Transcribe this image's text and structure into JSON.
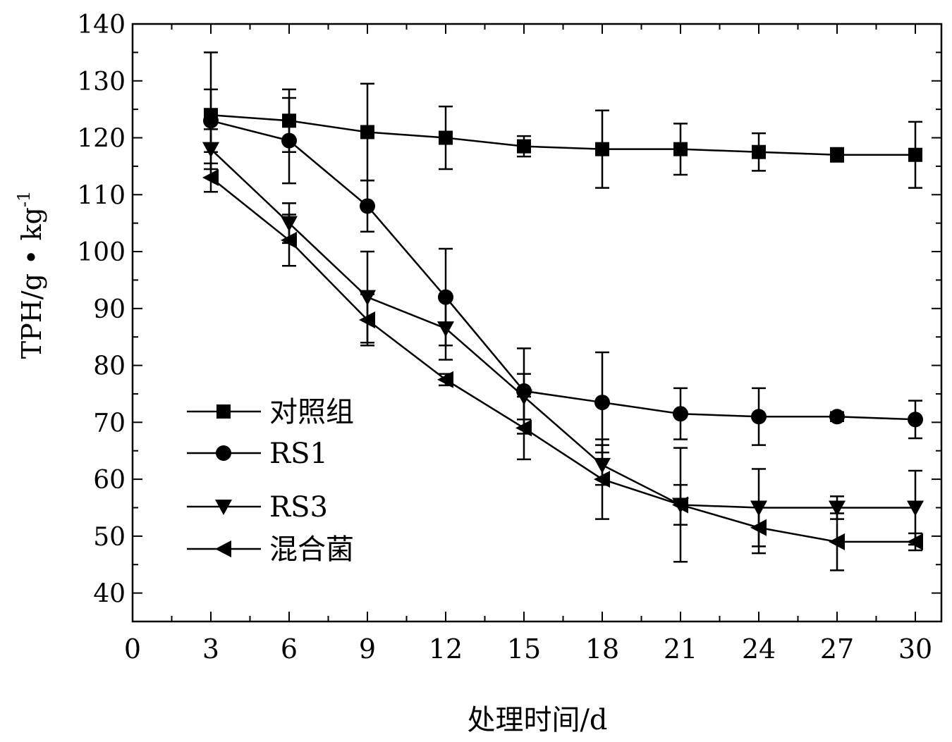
{
  "chart_data": {
    "type": "line",
    "title": "",
    "xlabel": "处理时间/d",
    "ylabel": "TPH/g • kg",
    "ylabel_sup": "-1",
    "xlim": [
      0,
      31
    ],
    "ylim": [
      35,
      140
    ],
    "xticks": [
      0,
      3,
      6,
      9,
      12,
      15,
      18,
      21,
      24,
      27,
      30
    ],
    "yticks": [
      40,
      50,
      60,
      70,
      80,
      90,
      100,
      110,
      120,
      130,
      140
    ],
    "grid": false,
    "legend_position": "bottom-left",
    "x": [
      3,
      6,
      9,
      12,
      15,
      18,
      21,
      24,
      27,
      30
    ],
    "series": [
      {
        "name": "对照组",
        "marker": "square",
        "values": [
          124,
          123,
          121,
          120,
          118.5,
          118,
          118,
          117.5,
          117,
          117
        ],
        "errors": [
          11,
          5.5,
          8.5,
          5.5,
          1.8,
          6.8,
          4.5,
          3.3,
          1.2,
          5.8
        ]
      },
      {
        "name": "RS1",
        "marker": "circle",
        "values": [
          123,
          119.5,
          108,
          92,
          75.5,
          73.5,
          71.5,
          71,
          71,
          70.5
        ],
        "errors": [
          5.5,
          7.5,
          4.5,
          8.5,
          7.5,
          8.8,
          4.5,
          5.0,
          0.8,
          3.3
        ]
      },
      {
        "name": "RS3",
        "marker": "triangle-down",
        "values": [
          118,
          105,
          92,
          86.5,
          74.5,
          62.5,
          55.5,
          55,
          55,
          55
        ],
        "errors": [
          3.5,
          3.5,
          8.0,
          5.5,
          4.0,
          3.5,
          3.5,
          6.8,
          2.0,
          6.5
        ]
      },
      {
        "name": "混合菌",
        "marker": "triangle-left",
        "values": [
          113,
          102,
          88,
          77.5,
          69,
          60,
          55.5,
          51.5,
          49,
          49
        ],
        "errors": [
          2.5,
          4.5,
          4.5,
          1.0,
          5.5,
          7.0,
          10.0,
          4.5,
          5.0,
          1.5
        ]
      }
    ]
  }
}
